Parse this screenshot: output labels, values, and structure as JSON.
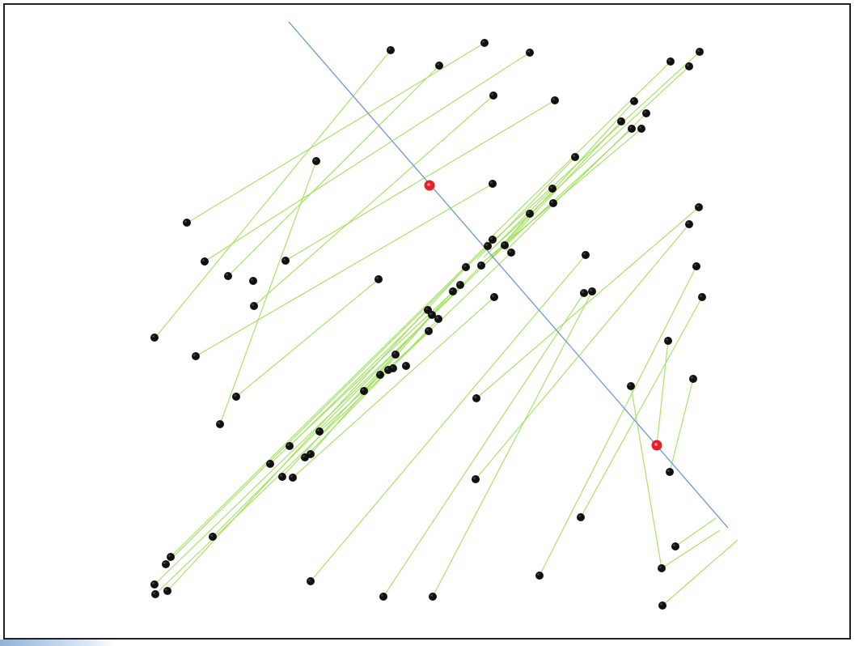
{
  "colors": {
    "line": "#9ee05a",
    "point": "#111111",
    "point_highlight": "#444444",
    "axis": "#6a98d8",
    "marker": "#e8202a",
    "frame": "#222222"
  },
  "chart_data": {
    "type": "scatter",
    "description_free": true,
    "points": [
      [
        483,
        62
      ],
      [
        599,
        53
      ],
      [
        655,
        65
      ],
      [
        543,
        81
      ],
      [
        829,
        76
      ],
      [
        865,
        64
      ],
      [
        852,
        82
      ],
      [
        610,
        118
      ],
      [
        686,
        124
      ],
      [
        784,
        125
      ],
      [
        799,
        140
      ],
      [
        768,
        150
      ],
      [
        781,
        159
      ],
      [
        793,
        159
      ],
      [
        391,
        199
      ],
      [
        711,
        194
      ],
      [
        609,
        227
      ],
      [
        683,
        233
      ],
      [
        684,
        251
      ],
      [
        655,
        264
      ],
      [
        231,
        275
      ],
      [
        253,
        323
      ],
      [
        282,
        341
      ],
      [
        313,
        347
      ],
      [
        353,
        322
      ],
      [
        468,
        345
      ],
      [
        609,
        296
      ],
      [
        603,
        304
      ],
      [
        624,
        303
      ],
      [
        632,
        312
      ],
      [
        576,
        330
      ],
      [
        595,
        328
      ],
      [
        724,
        315
      ],
      [
        569,
        352
      ],
      [
        560,
        360
      ],
      [
        722,
        362
      ],
      [
        732,
        360
      ],
      [
        611,
        367
      ],
      [
        314,
        378
      ],
      [
        529,
        383
      ],
      [
        534,
        389
      ],
      [
        542,
        394
      ],
      [
        530,
        409
      ],
      [
        191,
        417
      ],
      [
        242,
        440
      ],
      [
        489,
        438
      ],
      [
        486,
        455
      ],
      [
        480,
        457
      ],
      [
        502,
        452
      ],
      [
        470,
        463
      ],
      [
        450,
        483
      ],
      [
        292,
        490
      ],
      [
        589,
        492
      ],
      [
        272,
        524
      ],
      [
        780,
        477
      ],
      [
        857,
        468
      ],
      [
        826,
        421
      ],
      [
        864,
        256
      ],
      [
        852,
        277
      ],
      [
        861,
        329
      ],
      [
        868,
        367
      ],
      [
        395,
        533
      ],
      [
        358,
        551
      ],
      [
        384,
        561
      ],
      [
        377,
        565
      ],
      [
        334,
        573
      ],
      [
        349,
        589
      ],
      [
        362,
        590
      ],
      [
        588,
        592
      ],
      [
        812,
        550
      ],
      [
        828,
        583
      ],
      [
        718,
        639
      ],
      [
        263,
        663
      ],
      [
        211,
        688
      ],
      [
        205,
        697
      ],
      [
        835,
        675
      ],
      [
        818,
        702
      ],
      [
        667,
        711
      ],
      [
        384,
        718
      ],
      [
        191,
        722
      ],
      [
        192,
        734
      ],
      [
        207,
        730
      ],
      [
        474,
        737
      ],
      [
        535,
        737
      ],
      [
        819,
        748
      ]
    ],
    "lines": [
      [
        483,
        62,
        192,
        417
      ],
      [
        599,
        53,
        232,
        275
      ],
      [
        655,
        65,
        253,
        323
      ],
      [
        543,
        81,
        282,
        341
      ],
      [
        610,
        118,
        314,
        378
      ],
      [
        686,
        124,
        353,
        322
      ],
      [
        391,
        199,
        272,
        524
      ],
      [
        468,
        345,
        292,
        490
      ],
      [
        829,
        76,
        600,
        300
      ],
      [
        865,
        64,
        605,
        302
      ],
      [
        852,
        82,
        610,
        306
      ],
      [
        784,
        125,
        620,
        305
      ],
      [
        799,
        140,
        625,
        310
      ],
      [
        768,
        150,
        615,
        312
      ],
      [
        781,
        159,
        598,
        328
      ],
      [
        793,
        159,
        590,
        330
      ],
      [
        711,
        194,
        590,
        320
      ],
      [
        683,
        233,
        598,
        318
      ],
      [
        684,
        251,
        604,
        318
      ],
      [
        655,
        264,
        606,
        320
      ],
      [
        609,
        227,
        242,
        440
      ],
      [
        609,
        296,
        211,
        688
      ],
      [
        603,
        304,
        205,
        697
      ],
      [
        624,
        303,
        191,
        722
      ],
      [
        632,
        312,
        192,
        734
      ],
      [
        576,
        330,
        207,
        730
      ],
      [
        595,
        328,
        263,
        663
      ],
      [
        569,
        352,
        334,
        573
      ],
      [
        560,
        360,
        349,
        589
      ],
      [
        611,
        367,
        362,
        590
      ],
      [
        529,
        383,
        358,
        551
      ],
      [
        534,
        389,
        384,
        561
      ],
      [
        542,
        394,
        377,
        565
      ],
      [
        530,
        409,
        395,
        533
      ],
      [
        489,
        438,
        450,
        483
      ],
      [
        864,
        256,
        589,
        492
      ],
      [
        852,
        277,
        588,
        592
      ],
      [
        724,
        315,
        384,
        718
      ],
      [
        722,
        362,
        474,
        737
      ],
      [
        732,
        360,
        535,
        737
      ],
      [
        861,
        329,
        667,
        711
      ],
      [
        868,
        367,
        718,
        639
      ],
      [
        826,
        421,
        812,
        550
      ],
      [
        857,
        468,
        828,
        583
      ],
      [
        780,
        477,
        818,
        702
      ],
      [
        885,
        640,
        835,
        675
      ],
      [
        890,
        655,
        818,
        702
      ],
      [
        912,
        667,
        819,
        748
      ]
    ],
    "axis_line": [
      357,
      27,
      900,
      652
    ],
    "markers": [
      [
        531,
        229
      ],
      [
        812,
        550
      ]
    ]
  }
}
